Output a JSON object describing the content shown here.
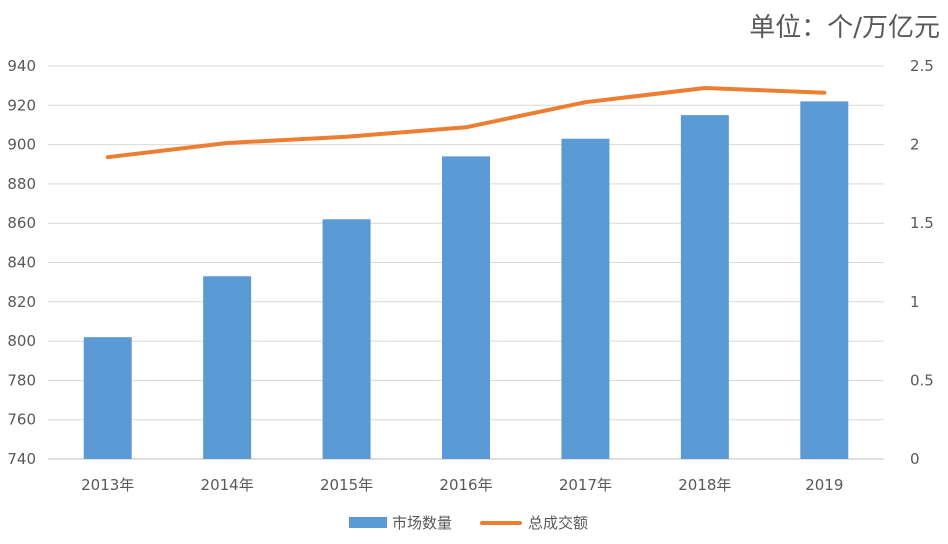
{
  "unit_label": "单位：个/万亿元",
  "colors": {
    "bar": "#5B9BD5",
    "line": "#ED7D31",
    "grid": "#D9D9D9",
    "text": "#595959"
  },
  "chart_data": {
    "type": "bar+line",
    "categories": [
      "2013年",
      "2014年",
      "2015年",
      "2016年",
      "2017年",
      "2018年",
      "2019"
    ],
    "series": [
      {
        "name": "市场数量",
        "type": "bar",
        "axis": "left",
        "values": [
          802,
          833,
          862,
          894,
          903,
          915,
          922
        ]
      },
      {
        "name": "总成交额",
        "type": "line",
        "axis": "right",
        "values": [
          1.92,
          2.01,
          2.05,
          2.11,
          2.27,
          2.36,
          2.33
        ]
      }
    ],
    "y_left": {
      "min": 740,
      "max": 940,
      "step": 20,
      "ticks": [
        "740",
        "760",
        "780",
        "800",
        "820",
        "840",
        "860",
        "880",
        "900",
        "920",
        "940"
      ]
    },
    "y_right": {
      "min": 0,
      "max": 2.5,
      "step": 0.5,
      "ticks": [
        "0",
        "0.5",
        "1",
        "1.5",
        "2",
        "2.5"
      ]
    },
    "grid": true,
    "legend": "bottom"
  }
}
